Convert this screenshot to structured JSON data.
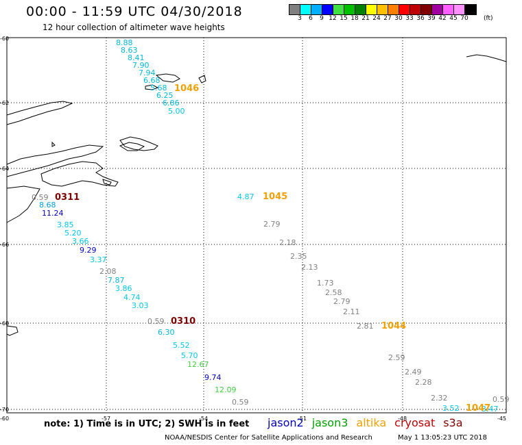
{
  "title": "00:00 - 11:59 UTC 04/30/2018",
  "subtitle": "12 hour collection of altimeter wave heights",
  "legend": {
    "colors": [
      "#808080",
      "#00ffff",
      "#00b0ff",
      "#0000ff",
      "#40e040",
      "#00c000",
      "#008000",
      "#ffff00",
      "#ffc000",
      "#ff8000",
      "#ff0000",
      "#c00000",
      "#800000",
      "#a000a0",
      "#ff60ff",
      "#ff90ff",
      "#000000"
    ],
    "ticks": [
      "3",
      "6",
      "9",
      "12",
      "15",
      "18",
      "21",
      "24",
      "27",
      "30",
      "33",
      "36",
      "39",
      "42",
      "45",
      "70"
    ],
    "unit": "(ft)"
  },
  "axes": {
    "lat_labels": [
      "-60",
      "-62",
      "-64",
      "-66",
      "-68",
      "-70"
    ],
    "lon_labels": [
      "-60",
      "-57",
      "-54",
      "-51",
      "-48",
      "-45"
    ]
  },
  "observations": [
    {
      "v": "8.88",
      "c": "#00b8d8"
    },
    {
      "v": "8.63",
      "c": "#00b8d8"
    },
    {
      "v": "8.41",
      "c": "#00b8d8"
    },
    {
      "v": "7.90",
      "c": "#00b8d8"
    },
    {
      "v": "7.94",
      "c": "#00b8d8"
    },
    {
      "v": "6.68",
      "c": "#00b8d8"
    },
    {
      "v": "5.68",
      "c": "#00b8d8"
    },
    {
      "v": "6.25",
      "c": "#00b8d8"
    },
    {
      "v": "6.86",
      "c": "#00b8d8"
    },
    {
      "v": "5.00",
      "c": "#00c8e8"
    },
    {
      "v": "0.59",
      "c": "#808080"
    },
    {
      "v": "8.68",
      "c": "#00a0e0"
    },
    {
      "v": "11.24",
      "c": "#0000c0"
    },
    {
      "v": "3.85",
      "c": "#00c8e8"
    },
    {
      "v": "5.20",
      "c": "#00c8e8"
    },
    {
      "v": "3.66",
      "c": "#00c8e8"
    },
    {
      "v": "9.29",
      "c": "#0000c0"
    },
    {
      "v": "3.37",
      "c": "#00c8e8"
    },
    {
      "v": "2.08",
      "c": "#808080"
    },
    {
      "v": "7.87",
      "c": "#00b8d8"
    },
    {
      "v": "3.86",
      "c": "#00c8e8"
    },
    {
      "v": "4.74",
      "c": "#00c8e8"
    },
    {
      "v": "3.03",
      "c": "#00c8e8"
    },
    {
      "v": "0.59",
      "c": "#808080"
    },
    {
      "v": "6.30",
      "c": "#00b8d8"
    },
    {
      "v": "5.52",
      "c": "#00c8e8"
    },
    {
      "v": "5.70",
      "c": "#00c8e8"
    },
    {
      "v": "12.67",
      "c": "#40d040"
    },
    {
      "v": "9.74",
      "c": "#0000c0"
    },
    {
      "v": "12.09",
      "c": "#40d040"
    },
    {
      "v": "0.59",
      "c": "#808080"
    },
    {
      "v": "4.87",
      "c": "#00c8e8"
    },
    {
      "v": "2.79",
      "c": "#808080"
    },
    {
      "v": "2.18",
      "c": "#808080"
    },
    {
      "v": "2.35",
      "c": "#808080"
    },
    {
      "v": "2.13",
      "c": "#808080"
    },
    {
      "v": "1.73",
      "c": "#808080"
    },
    {
      "v": "2.58",
      "c": "#808080"
    },
    {
      "v": "2.79",
      "c": "#808080"
    },
    {
      "v": "2.11",
      "c": "#808080"
    },
    {
      "v": "2.81",
      "c": "#808080"
    },
    {
      "v": "2.59",
      "c": "#808080"
    },
    {
      "v": "2.49",
      "c": "#808080"
    },
    {
      "v": "2.28",
      "c": "#808080"
    },
    {
      "v": "2.32",
      "c": "#808080"
    },
    {
      "v": "3.52",
      "c": "#00c8e8"
    },
    {
      "v": "3.47",
      "c": "#00c8e8"
    },
    {
      "v": "0.59",
      "c": "#808080"
    }
  ],
  "pass_labels": [
    {
      "v": "1046",
      "c": "#f0a000"
    },
    {
      "v": "0311",
      "c": "#800000"
    },
    {
      "v": "0310",
      "c": "#800000"
    },
    {
      "v": "1045",
      "c": "#f0a000"
    },
    {
      "v": "1044",
      "c": "#f0a000"
    },
    {
      "v": "1047",
      "c": "#f0a000"
    }
  ],
  "note": "note: 1) Time is in UTC; 2) SWH is in feet",
  "satellites": [
    {
      "name": "jason2",
      "color": "#0000c0"
    },
    {
      "name": "jason3",
      "color": "#00a000"
    },
    {
      "name": "altika",
      "color": "#f0a000"
    },
    {
      "name": "cryosat",
      "color": "#c00000"
    },
    {
      "name": "s3a",
      "color": "#800000"
    }
  ],
  "credit": "NOAA/NESDIS Center for Satellite Applications and Research",
  "credit_time": "May  1 13:05:23 UTC 2018"
}
